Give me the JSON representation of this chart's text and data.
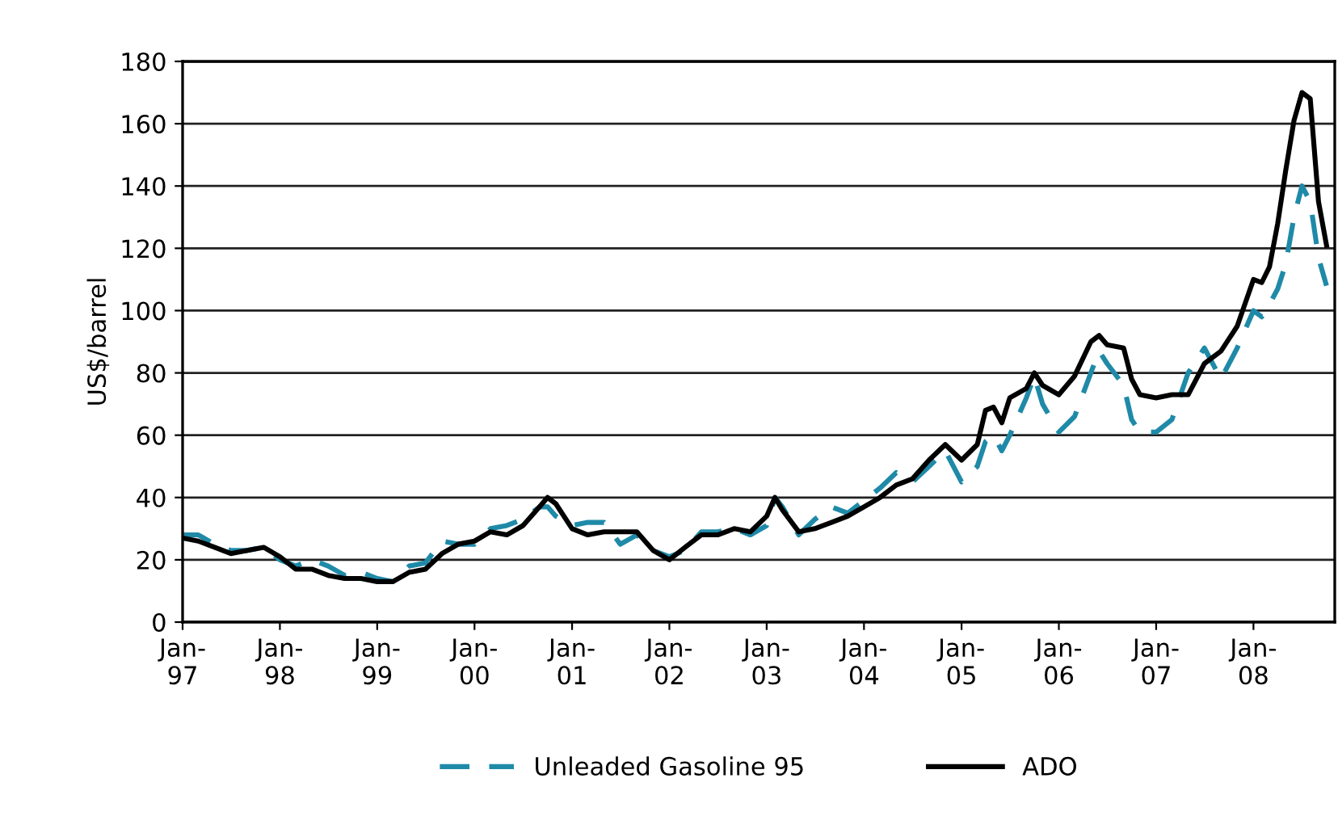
{
  "chart_data": {
    "type": "line",
    "ylabel": "US$/barrel",
    "x": [
      "1997-01",
      "1997-03",
      "1997-05",
      "1997-07",
      "1997-09",
      "1997-11",
      "1998-01",
      "1998-03",
      "1998-05",
      "1998-07",
      "1998-09",
      "1998-11",
      "1999-01",
      "1999-03",
      "1999-05",
      "1999-07",
      "1999-09",
      "1999-11",
      "2000-01",
      "2000-03",
      "2000-05",
      "2000-07",
      "2000-09",
      "2000-10",
      "2000-11",
      "2001-01",
      "2001-03",
      "2001-05",
      "2001-07",
      "2001-09",
      "2001-11",
      "2002-01",
      "2002-03",
      "2002-05",
      "2002-07",
      "2002-09",
      "2002-11",
      "2003-01",
      "2003-02",
      "2003-03",
      "2003-05",
      "2003-07",
      "2003-09",
      "2003-11",
      "2004-01",
      "2004-03",
      "2004-05",
      "2004-07",
      "2004-09",
      "2004-11",
      "2005-01",
      "2005-03",
      "2005-04",
      "2005-05",
      "2005-06",
      "2005-07",
      "2005-09",
      "2005-10",
      "2005-11",
      "2006-01",
      "2006-03",
      "2006-05",
      "2006-06",
      "2006-07",
      "2006-09",
      "2006-10",
      "2006-11",
      "2007-01",
      "2007-03",
      "2007-05",
      "2007-07",
      "2007-09",
      "2007-11",
      "2008-01",
      "2008-02",
      "2008-03",
      "2008-04",
      "2008-05",
      "2008-06",
      "2008-07",
      "2008-08",
      "2008-09",
      "2008-10"
    ],
    "series": [
      {
        "name": "Unleaded Gasoline 95",
        "color": "#1f8aa8",
        "line_style": "dashed",
        "values": [
          28,
          28,
          25,
          23,
          23,
          24,
          20,
          18,
          20,
          18,
          15,
          16,
          14,
          13,
          18,
          19,
          26,
          25,
          25,
          30,
          31,
          33,
          37,
          37,
          34,
          31,
          32,
          32,
          25,
          28,
          23,
          21,
          23,
          29,
          29,
          30,
          28,
          31,
          40,
          37,
          28,
          33,
          37,
          35,
          39,
          43,
          48,
          45,
          50,
          55,
          45,
          50,
          58,
          60,
          55,
          60,
          72,
          79,
          70,
          61,
          66,
          80,
          87,
          83,
          76,
          65,
          61,
          61,
          65,
          80,
          88,
          78,
          88,
          100,
          98,
          102,
          107,
          115,
          130,
          140,
          135,
          117,
          108
        ]
      },
      {
        "name": "ADO",
        "color": "#000000",
        "line_style": "solid",
        "values": [
          27,
          26,
          24,
          22,
          23,
          24,
          21,
          17,
          17,
          15,
          14,
          14,
          13,
          13,
          16,
          17,
          22,
          25,
          26,
          29,
          28,
          31,
          37,
          40,
          38,
          30,
          28,
          29,
          29,
          29,
          23,
          20,
          24,
          28,
          28,
          30,
          29,
          34,
          40,
          36,
          29,
          30,
          32,
          34,
          37,
          40,
          44,
          46,
          52,
          57,
          52,
          57,
          68,
          69,
          64,
          72,
          75,
          80,
          76,
          73,
          79,
          90,
          92,
          89,
          88,
          78,
          73,
          72,
          73,
          73,
          83,
          87,
          95,
          110,
          109,
          114,
          128,
          145,
          161,
          170,
          168,
          135,
          121
        ]
      }
    ],
    "xlim": [
      "1997-01",
      "2008-11"
    ],
    "xticks": [
      {
        "value": "1997-01",
        "label": "Jan-\n97"
      },
      {
        "value": "1998-01",
        "label": "Jan-\n98"
      },
      {
        "value": "1999-01",
        "label": "Jan-\n99"
      },
      {
        "value": "2000-01",
        "label": "Jan-\n00"
      },
      {
        "value": "2001-01",
        "label": "Jan-\n01"
      },
      {
        "value": "2002-01",
        "label": "Jan-\n02"
      },
      {
        "value": "2003-01",
        "label": "Jan-\n03"
      },
      {
        "value": "2004-01",
        "label": "Jan-\n04"
      },
      {
        "value": "2005-01",
        "label": "Jan-\n05"
      },
      {
        "value": "2006-01",
        "label": "Jan-\n06"
      },
      {
        "value": "2007-01",
        "label": "Jan-\n07"
      },
      {
        "value": "2008-01",
        "label": "Jan-\n08"
      }
    ],
    "ylim": [
      0,
      180
    ],
    "yticks": [
      0,
      20,
      40,
      60,
      80,
      100,
      120,
      140,
      160,
      180
    ],
    "grid": "y",
    "legend": "bottom",
    "marker": "none"
  }
}
